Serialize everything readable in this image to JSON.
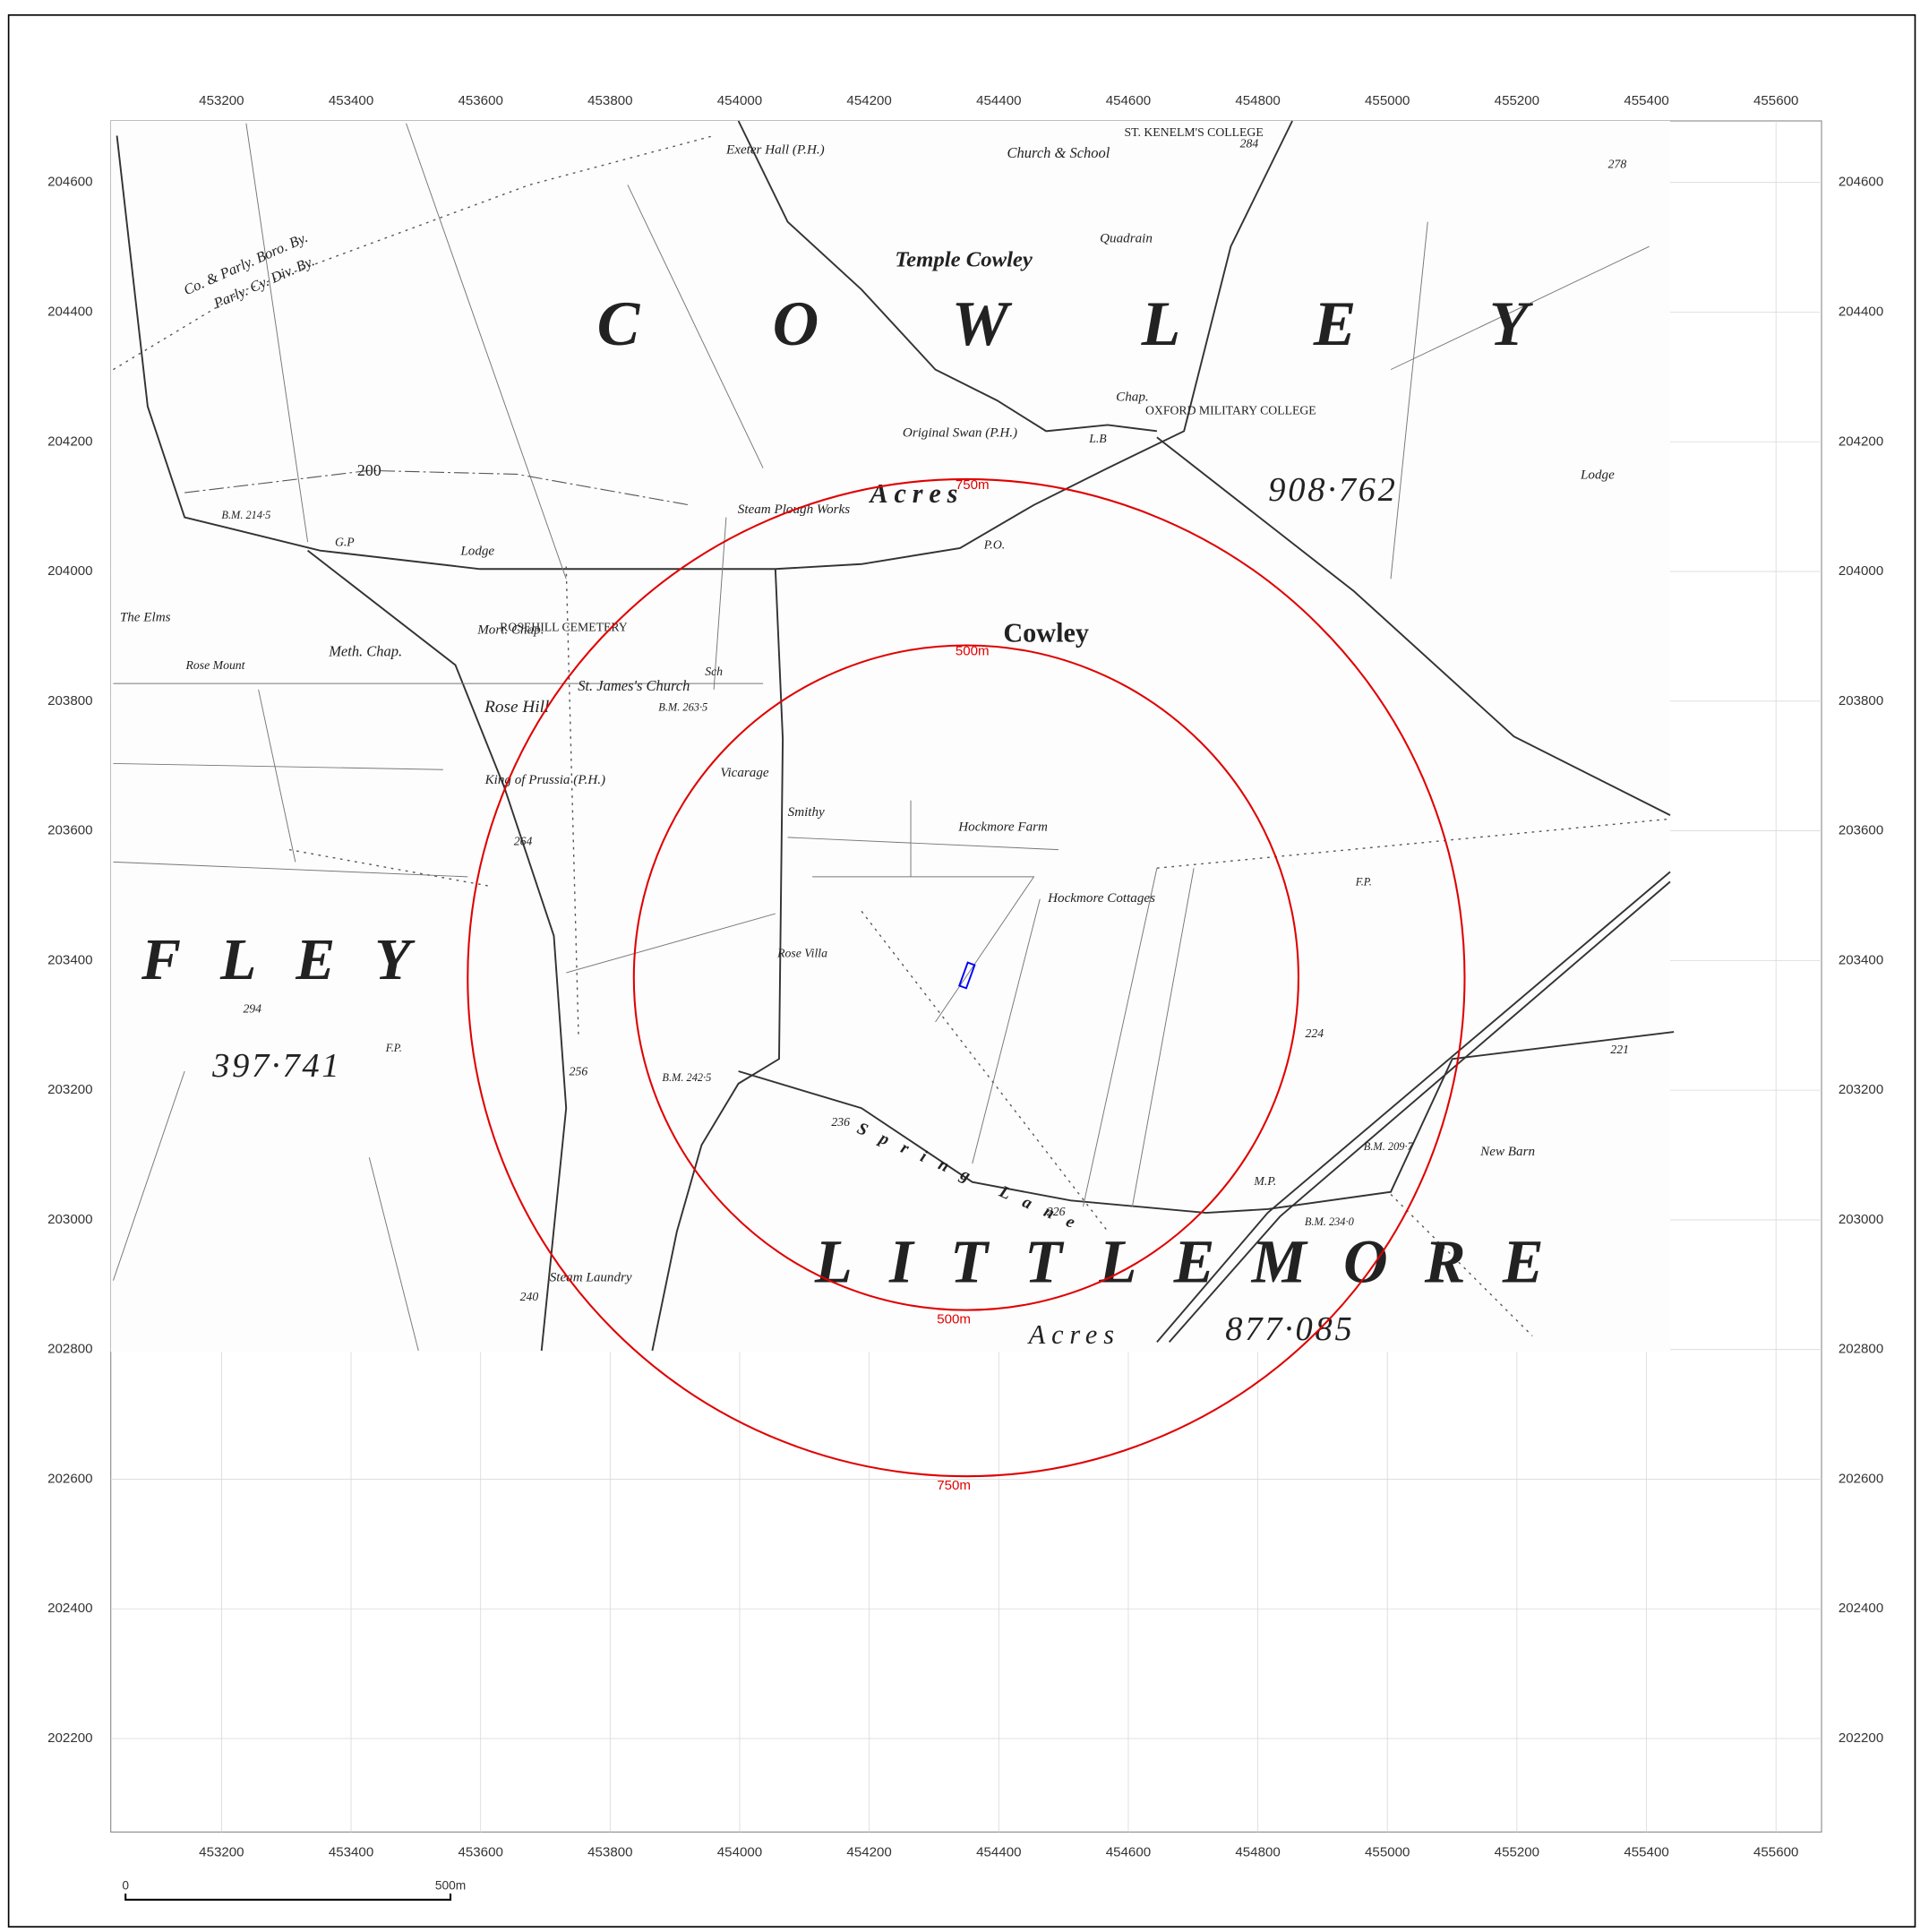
{
  "map": {
    "x_ticks": [
      453200,
      453400,
      453600,
      453800,
      454000,
      454200,
      454400,
      454600,
      454800,
      455000,
      455200,
      455400,
      455600
    ],
    "y_ticks": [
      204600,
      204400,
      204200,
      204000,
      203800,
      203600,
      203400,
      203200,
      203000,
      202800,
      202600,
      202400,
      202200
    ],
    "labels": [
      "Temple Cowley",
      "Cowley",
      "Rose Hill",
      "Hockmore Farm",
      "Hockmore Cottages",
      "Rose Villa",
      "Smithy",
      "Vicarage",
      "St. James's Church",
      "King of Prussia (P.H.)",
      "Meth. Chap.",
      "Lodge",
      "Steam Plough Works",
      "Original Swan (P.H.)",
      "OXFORD MILITARY COLLEGE",
      "Church & School",
      "ST. KENELM'S COLLEGE",
      "Exeter Hall (P.H.)",
      "New Barn",
      "Spring Lane",
      "Steam Laundry",
      "The Elms",
      "Rose Mount",
      "ROSEHILL CEMETERY",
      "Mort. Chap.",
      "Quadrain",
      "Lodge",
      "Acres",
      "Acres",
      "908·762",
      "397·741",
      "877·085",
      "COWLEY",
      "FLEY",
      "LITTLEMORE",
      "Co. & Parly. Boro. By.",
      "Parly. Cy. Div. By.",
      "B.M. 209·7",
      "B.M. 234·0",
      "B.M. 242·5",
      "B.M. 263·5",
      "B.M. 214·5",
      "F.P.",
      "F.P.",
      "224",
      "221",
      "278",
      "284",
      "264",
      "256",
      "294",
      "240",
      "236",
      "226",
      "200",
      "G.P",
      "L.B",
      "M.P.",
      "Chap.",
      "P.O.",
      "Sch"
    ],
    "buffers": [
      {
        "radius": 750,
        "labels": [
          "750m",
          "750m"
        ]
      },
      {
        "radius": 500,
        "labels": [
          "500m",
          "500m"
        ]
      }
    ],
    "scale_bar": {
      "length": 500,
      "start_label": "0",
      "end_label": "500m"
    }
  }
}
